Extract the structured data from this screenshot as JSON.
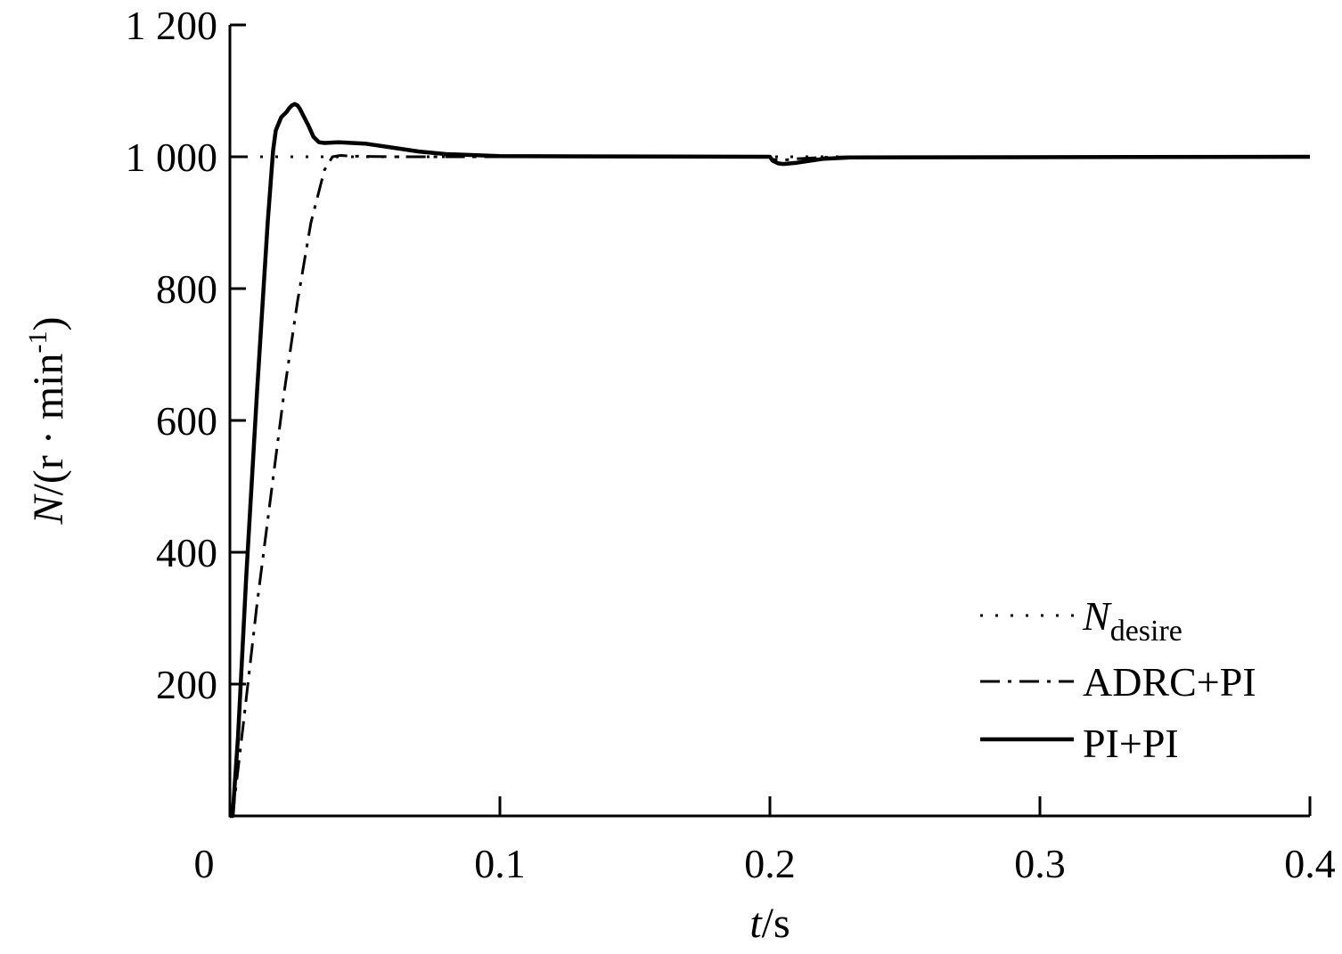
{
  "chart_data": {
    "type": "line",
    "title": "",
    "xlabel": {
      "var": "t",
      "unit": "s"
    },
    "ylabel": {
      "var": "N",
      "unit_open": "(r · min",
      "unit_sup": "-1",
      "unit_close": ")"
    },
    "xlim": [
      0,
      0.4
    ],
    "ylim": [
      0,
      1200
    ],
    "x_ticks": [
      0,
      0.1,
      0.2,
      0.3,
      0.4
    ],
    "x_tick_labels": [
      "0",
      "0.1",
      "0.2",
      "0.3",
      "0.4"
    ],
    "y_ticks": [
      200,
      400,
      600,
      800,
      1000,
      1200
    ],
    "y_tick_labels": [
      "200",
      "400",
      "600",
      "800",
      "1 000",
      "1 200"
    ],
    "x_origin_label": "0",
    "grid": false,
    "legend_position": "bottom-right",
    "series": [
      {
        "name": "N",
        "name_sub": "desire",
        "style": "dotted",
        "color": "#000000",
        "x": [
          0.0,
          0.015,
          0.4
        ],
        "y": [
          1000,
          1000,
          1000
        ]
      },
      {
        "name": "ADRC+PI",
        "style": "dashdot",
        "color": "#000000",
        "x": [
          0.0,
          0.001,
          0.005,
          0.01,
          0.015,
          0.02,
          0.025,
          0.03,
          0.035,
          0.038,
          0.041,
          0.045,
          0.06,
          0.1,
          0.2,
          0.201,
          0.205,
          0.21,
          0.22,
          0.23,
          0.4
        ],
        "y": [
          0,
          0,
          140,
          320,
          480,
          640,
          780,
          900,
          980,
          1000,
          1002,
          1001,
          1000,
          1000,
          1000,
          996,
          995,
          997,
          999,
          1000,
          1000
        ]
      },
      {
        "name": "PI+PI",
        "style": "solid",
        "color": "#000000",
        "x": [
          0.0,
          0.001,
          0.003,
          0.006,
          0.01,
          0.014,
          0.016,
          0.017,
          0.019,
          0.021,
          0.022,
          0.023,
          0.024,
          0.025,
          0.026,
          0.027,
          0.029,
          0.031,
          0.033,
          0.035,
          0.04,
          0.05,
          0.06,
          0.07,
          0.08,
          0.1,
          0.2,
          0.201,
          0.203,
          0.205,
          0.21,
          0.215,
          0.22,
          0.23,
          0.4
        ],
        "y": [
          0,
          0,
          120,
          360,
          640,
          900,
          1010,
          1040,
          1060,
          1068,
          1074,
          1078,
          1080,
          1078,
          1072,
          1064,
          1048,
          1030,
          1022,
          1021,
          1022,
          1020,
          1014,
          1008,
          1004,
          1001,
          1000,
          994,
          990,
          989,
          991,
          994,
          997,
          999,
          1000
        ]
      }
    ]
  }
}
